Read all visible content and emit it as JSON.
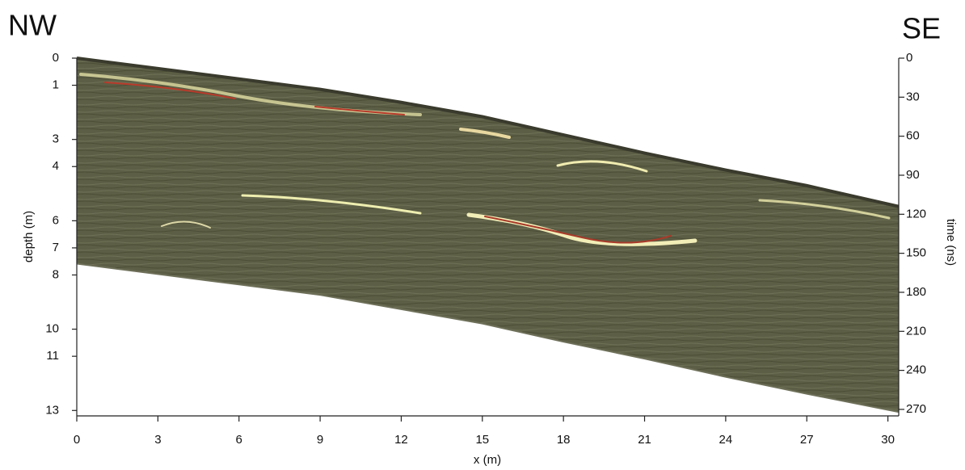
{
  "chart_data": {
    "type": "band",
    "title_left": "NW",
    "title_right": "SE",
    "xlabel": "x (m)",
    "ylabel": "depth (m)",
    "y2label": "time (ns)",
    "x": [
      0,
      3,
      6,
      9,
      12,
      15,
      18,
      21,
      24,
      27,
      30.4
    ],
    "series": [
      {
        "color": "#3a3a2d",
        "axis": "y2",
        "values": [
          0,
          8,
          16,
          24,
          34,
          45,
          59,
          73,
          86,
          98,
          114
        ]
      },
      {
        "color": "#6e6f58",
        "axis": "y2",
        "values": [
          158,
          166,
          174,
          182,
          193,
          204,
          218,
          231,
          245,
          258,
          272
        ]
      }
    ],
    "fill": "#5c5e45",
    "xlim": [
      0,
      30.4
    ],
    "xticks": [
      0,
      3,
      6,
      9,
      12,
      15,
      18,
      21,
      24,
      27,
      30
    ],
    "ylim": [
      0,
      13.2
    ],
    "yticks": [
      0,
      1,
      3,
      4,
      6,
      7,
      8,
      10,
      11,
      13
    ],
    "y2lim": [
      0,
      275
    ],
    "y2ticks": [
      0,
      30,
      60,
      90,
      120,
      150,
      180,
      210,
      240,
      270
    ]
  }
}
